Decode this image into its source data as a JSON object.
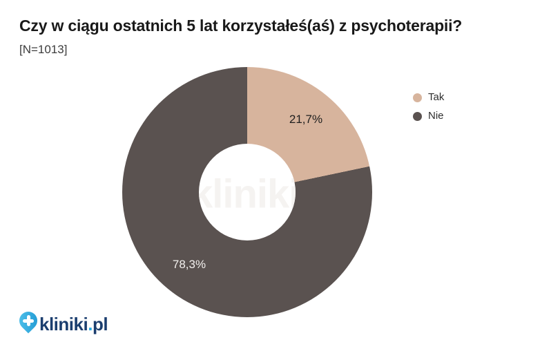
{
  "header": {
    "title": "Czy w ciągu ostatnich 5 lat korzystałeś(aś) z psychoterapii?",
    "sample": "[N=1013]"
  },
  "chart_data": {
    "type": "pie",
    "donut": true,
    "title": "Czy w ciągu ostatnich 5 lat korzystałeś(aś) z psychoterapii?",
    "sample_size": 1013,
    "categories": [
      "Tak",
      "Nie"
    ],
    "values": [
      21.7,
      78.3
    ],
    "unit": "%",
    "start_angle_deg": 0,
    "direction": "clockwise",
    "legend_position": "right",
    "slices": [
      {
        "label": "Tak",
        "value": 21.7,
        "display": "21,7%",
        "color": "#d7b49d",
        "text_color": "#1e1e1e"
      },
      {
        "label": "Nie",
        "value": 78.3,
        "display": "78,3%",
        "color": "#5a5250",
        "text_color": "#f3f0ee"
      }
    ]
  },
  "watermark": {
    "text": "kliniki.pl",
    "color": "#f5f3f1"
  },
  "footer": {
    "logo": {
      "brand": "kliniki",
      "dot": ".",
      "tld": "pl",
      "navy": "#1b3e6f",
      "blue": "#2aabe3",
      "pin_gradient": [
        "#54c4ec",
        "#1d97d2"
      ]
    }
  }
}
